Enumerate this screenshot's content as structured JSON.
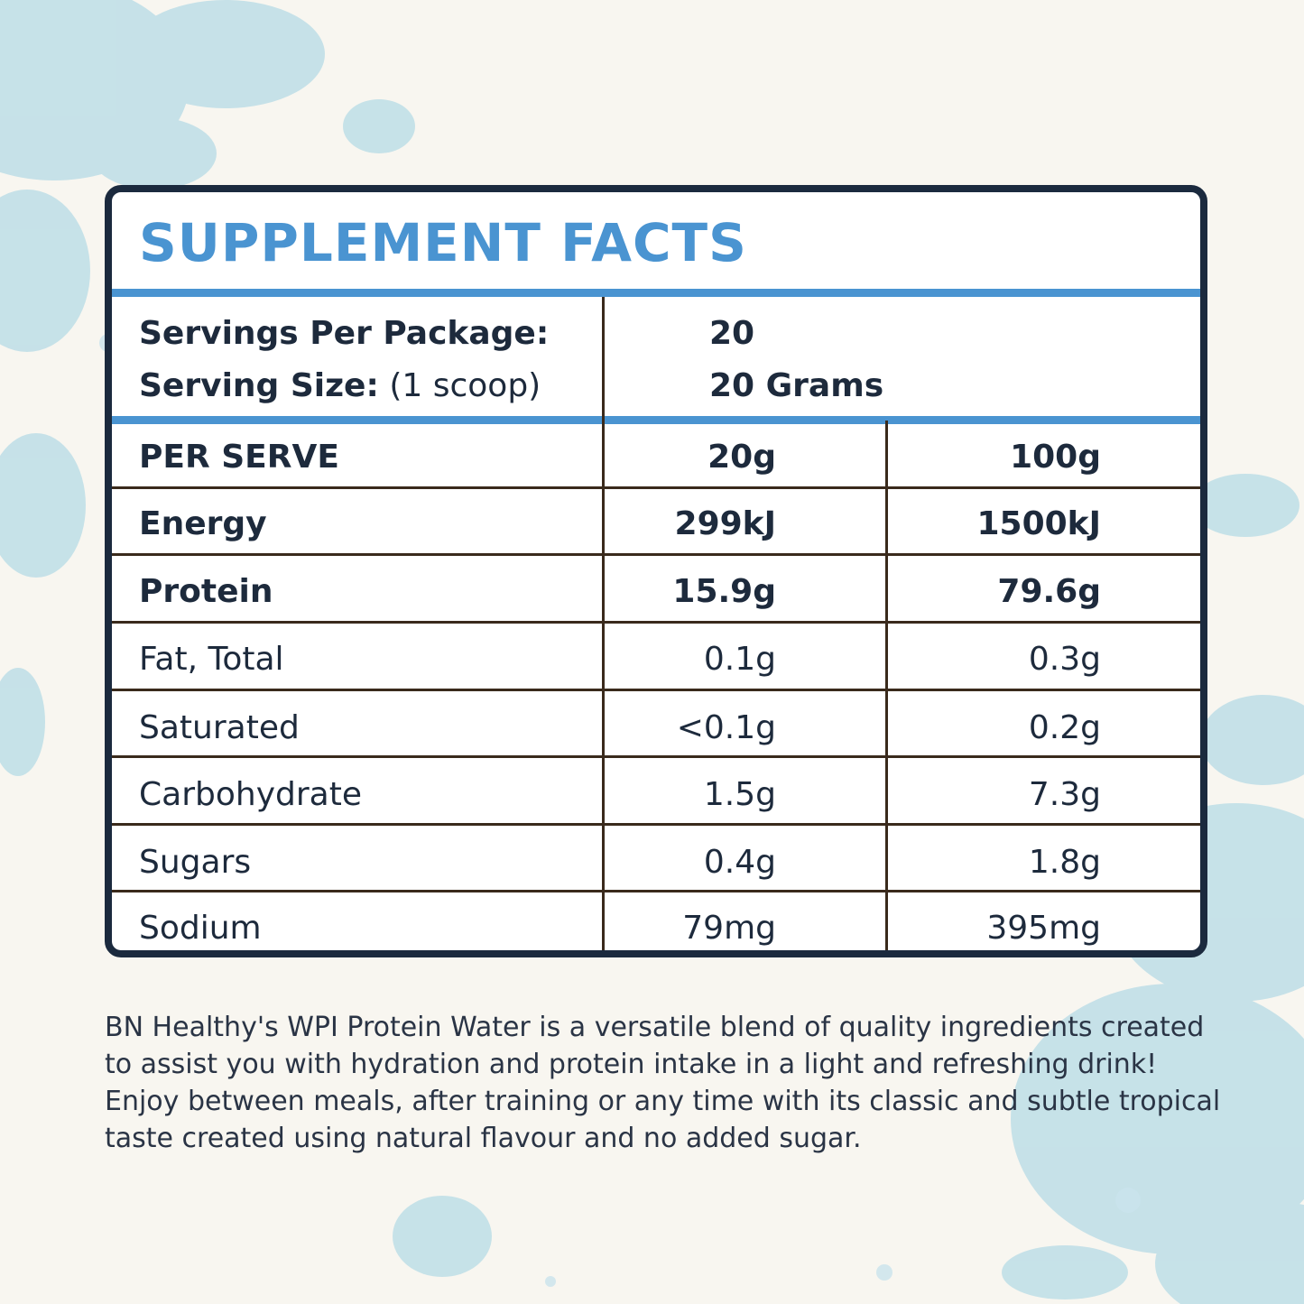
{
  "title": "SUPPLEMENT FACTS",
  "servings": {
    "per_package_label": "Servings Per Package:",
    "per_package_value": "20",
    "size_label": "Serving Size:",
    "size_note": "(1 scoop)",
    "size_value": "20 Grams"
  },
  "table": {
    "header": [
      "PER SERVE",
      "20g",
      "100g"
    ],
    "rows": [
      [
        "Energy",
        "299kJ",
        "1500kJ"
      ],
      [
        "Protein",
        "15.9g",
        "79.6g"
      ],
      [
        "Fat, Total",
        "0.1g",
        "0.3g"
      ],
      [
        "Saturated",
        "<0.1g",
        "0.2g"
      ],
      [
        "Carbohydrate",
        "1.5g",
        "7.3g"
      ],
      [
        "Sugars",
        "0.4g",
        "1.8g"
      ],
      [
        "Sodium",
        "79mg",
        "395mg"
      ]
    ]
  },
  "description": "BN Healthy's WPI Protein Water is a versatile blend of quality ingredients created to assist you with hydration and protein intake in a light and refreshing drink! Enjoy between meals, after training or any time with its classic and subtle tropical taste created using natural flavour and no added sugar.",
  "colors": {
    "accent": "#4a94d1",
    "border": "#1b2a3e",
    "rule": "#3a2a1c",
    "background": "#f8f6f0",
    "powder": "#b6dbe6"
  }
}
